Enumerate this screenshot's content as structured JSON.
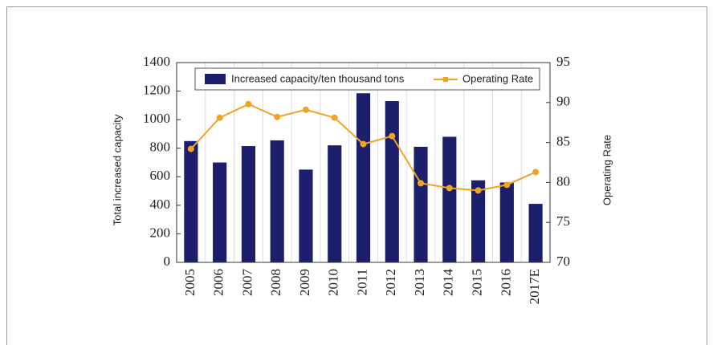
{
  "chart_data": {
    "type": "bar_line",
    "categories": [
      "2005",
      "2006",
      "2007",
      "2008",
      "2009",
      "2010",
      "2011",
      "2012",
      "2013",
      "2014",
      "2015",
      "2016",
      "2017E"
    ],
    "series": [
      {
        "name": "Increased capacity/ten thousand tons",
        "type": "bar",
        "color": "#1c1f6b",
        "values": [
          850,
          700,
          815,
          855,
          650,
          820,
          1185,
          1130,
          810,
          880,
          575,
          560,
          410
        ]
      },
      {
        "name": "Operating Rate",
        "type": "line",
        "color": "#f0a424",
        "axis": "y2",
        "values": [
          84.2,
          88.1,
          89.8,
          88.2,
          89.1,
          88.1,
          84.8,
          85.8,
          79.9,
          79.3,
          79.0,
          79.7,
          81.3
        ]
      }
    ],
    "ylabel": "Total increased capacity",
    "y2label": "Operating Rate",
    "ylim": [
      0,
      1400
    ],
    "yticks": [
      0,
      200,
      400,
      600,
      800,
      1000,
      1200,
      1400
    ],
    "y2lim": [
      70,
      95
    ],
    "y2ticks": [
      70,
      75,
      80,
      85,
      90,
      95
    ],
    "legend": "top"
  }
}
